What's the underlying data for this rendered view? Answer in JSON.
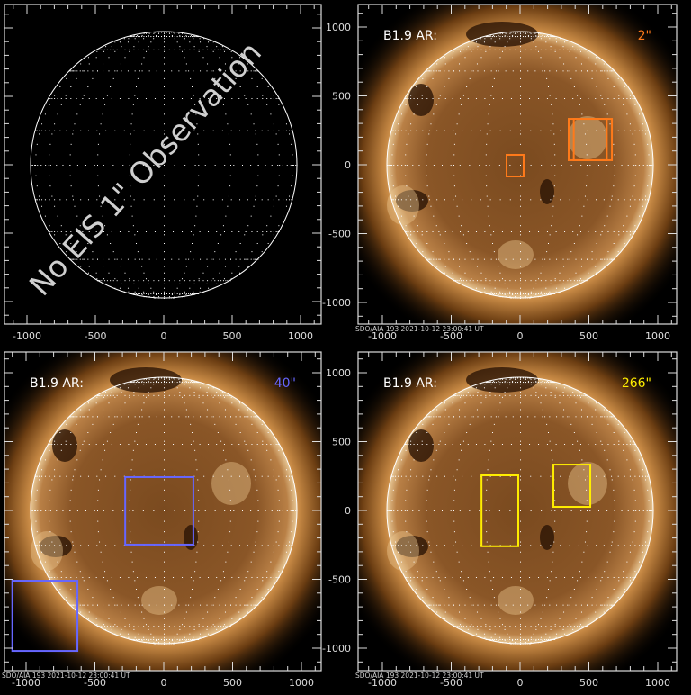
{
  "chart_data": [
    {
      "type": "image",
      "panel": "top-left",
      "xlim": [
        -1000,
        1000
      ],
      "ylim": [
        -1000,
        1000
      ],
      "xticks": [
        "-1000",
        "-500",
        "0",
        "500",
        "1000"
      ],
      "yticks": [
        "-1000",
        "-500",
        "0",
        "500",
        "1000"
      ],
      "overlay_text": "No EIS 1\" Observation",
      "show_sun_image": false,
      "grid": "heliographic dotted",
      "boxes": []
    },
    {
      "type": "image",
      "panel": "top-right",
      "xlim": [
        -1000,
        1000
      ],
      "ylim": [
        -1000,
        1000
      ],
      "xticks": [
        "-1000",
        "-500",
        "0",
        "500",
        "1000"
      ],
      "yticks": [
        "-1000",
        "-500",
        "0",
        "500",
        "1000"
      ],
      "label": "B1.9 AR:",
      "scale_label": "2\"",
      "scale_color": "#ff7a1a",
      "caption": "SDO/AIA 193  2021-10-12 23:00:41 UT",
      "show_sun_image": true,
      "boxes": [
        {
          "x": [
            -98,
            26
          ],
          "y": [
            -85,
            72
          ]
        },
        {
          "x": [
            353,
            667
          ],
          "y": [
            33,
            333
          ]
        },
        {
          "x": [
            390,
            630
          ],
          "y": [
            33,
            333
          ]
        }
      ]
    },
    {
      "type": "image",
      "panel": "bottom-left",
      "xlim": [
        -1000,
        1000
      ],
      "ylim": [
        -1000,
        1000
      ],
      "xticks": [
        "-1000",
        "-500",
        "0",
        "500",
        "1000"
      ],
      "yticks": [
        "-1000",
        "-500",
        "0",
        "500",
        "1000"
      ],
      "label": "B1.9 AR:",
      "scale_label": "40\"",
      "scale_color": "#6666ff",
      "caption": "SDO/AIA 193  2021-10-12 23:00:41 UT",
      "show_sun_image": true,
      "boxes": [
        {
          "x": [
            -280,
            215
          ],
          "y": [
            -248,
            242
          ]
        },
        {
          "x": [
            -1100,
            -627
          ],
          "y": [
            -1020,
            -510
          ]
        }
      ]
    },
    {
      "type": "image",
      "panel": "bottom-right",
      "xlim": [
        -1000,
        1000
      ],
      "ylim": [
        -1000,
        1000
      ],
      "xticks": [
        "-1000",
        "-500",
        "0",
        "500",
        "1000"
      ],
      "yticks": [
        "-1000",
        "-500",
        "0",
        "500",
        "1000"
      ],
      "label": "B1.9 AR:",
      "scale_label": "266\"",
      "scale_color": "#ffee00",
      "caption": "SDO/AIA 193  2021-10-12 23:00:41 UT",
      "show_sun_image": true,
      "boxes": [
        {
          "x": [
            -280,
            -13
          ],
          "y": [
            -260,
            255
          ]
        },
        {
          "x": [
            242,
            510
          ],
          "y": [
            26,
            333
          ]
        }
      ]
    }
  ]
}
